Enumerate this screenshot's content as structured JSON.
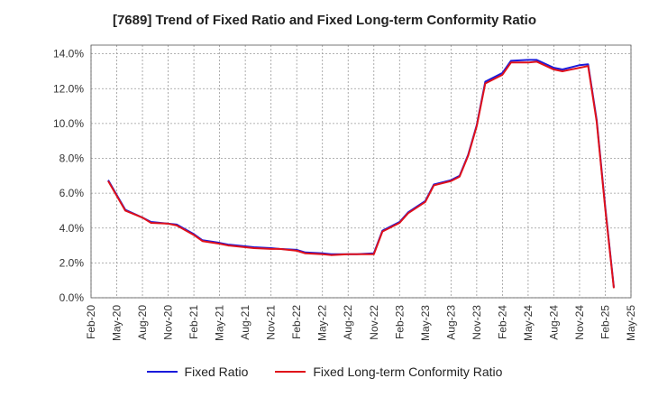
{
  "chart_data": {
    "type": "line",
    "title": "[7689]  Trend of Fixed Ratio and Fixed Long-term Conformity Ratio",
    "xlabel": "",
    "ylabel": "",
    "x_ticks": [
      "Feb-20",
      "May-20",
      "Aug-20",
      "Nov-20",
      "Feb-21",
      "May-21",
      "Aug-21",
      "Nov-21",
      "Feb-22",
      "May-22",
      "Aug-22",
      "Nov-22",
      "Feb-23",
      "May-23",
      "Aug-23",
      "Nov-23",
      "Feb-24",
      "May-24",
      "Aug-24",
      "Nov-24",
      "Feb-25",
      "May-25"
    ],
    "y_ticks": [
      "0.0%",
      "2.0%",
      "4.0%",
      "6.0%",
      "8.0%",
      "10.0%",
      "12.0%",
      "14.0%"
    ],
    "ylim": [
      0,
      14.5
    ],
    "grid": true,
    "legend_position": "bottom",
    "series": [
      {
        "name": "Fixed Ratio",
        "color": "#1a1adb",
        "x": [
          "Apr-20",
          "May-20",
          "Jun-20",
          "Aug-20",
          "Sep-20",
          "Nov-20",
          "Dec-20",
          "Feb-21",
          "Mar-21",
          "May-21",
          "Jun-21",
          "Aug-21",
          "Sep-21",
          "Nov-21",
          "Dec-21",
          "Feb-22",
          "Mar-22",
          "May-22",
          "Jun-22",
          "Aug-22",
          "Sep-22",
          "Nov-22",
          "Dec-22",
          "Feb-23",
          "Mar-23",
          "May-23",
          "Jun-23",
          "Aug-23",
          "Sep-23",
          "Oct-23",
          "Nov-23",
          "Dec-23",
          "Feb-24",
          "Mar-24",
          "May-24",
          "Jun-24",
          "Aug-24",
          "Sep-24",
          "Nov-24",
          "Dec-24",
          "Jan-25",
          "Feb-25",
          "Mar-25"
        ],
        "values": [
          6.75,
          5.9,
          5.05,
          4.6,
          4.35,
          4.25,
          4.2,
          3.65,
          3.3,
          3.15,
          3.05,
          2.95,
          2.9,
          2.85,
          2.8,
          2.75,
          2.6,
          2.55,
          2.5,
          2.5,
          2.5,
          2.55,
          3.85,
          4.35,
          4.9,
          5.55,
          6.5,
          6.75,
          7.0,
          8.2,
          9.9,
          12.4,
          12.9,
          13.6,
          13.65,
          13.65,
          13.2,
          13.1,
          13.35,
          13.4,
          10.2,
          5.2,
          0.6
        ]
      },
      {
        "name": "Fixed Long-term Conformity Ratio",
        "color": "#e0111a",
        "x": [
          "Apr-20",
          "May-20",
          "Jun-20",
          "Aug-20",
          "Sep-20",
          "Nov-20",
          "Dec-20",
          "Feb-21",
          "Mar-21",
          "May-21",
          "Jun-21",
          "Aug-21",
          "Sep-21",
          "Nov-21",
          "Dec-21",
          "Feb-22",
          "Mar-22",
          "May-22",
          "Jun-22",
          "Aug-22",
          "Sep-22",
          "Nov-22",
          "Dec-22",
          "Feb-23",
          "Mar-23",
          "May-23",
          "Jun-23",
          "Aug-23",
          "Sep-23",
          "Oct-23",
          "Nov-23",
          "Dec-23",
          "Feb-24",
          "Mar-24",
          "May-24",
          "Jun-24",
          "Aug-24",
          "Sep-24",
          "Nov-24",
          "Dec-24",
          "Jan-25",
          "Feb-25",
          "Mar-25"
        ],
        "values": [
          6.7,
          5.85,
          5.0,
          4.6,
          4.3,
          4.25,
          4.15,
          3.6,
          3.25,
          3.1,
          3.0,
          2.9,
          2.85,
          2.8,
          2.8,
          2.7,
          2.55,
          2.5,
          2.45,
          2.5,
          2.5,
          2.5,
          3.8,
          4.3,
          4.85,
          5.5,
          6.45,
          6.7,
          6.95,
          8.15,
          9.85,
          12.3,
          12.8,
          13.5,
          13.5,
          13.55,
          13.1,
          13.0,
          13.2,
          13.3,
          10.1,
          5.1,
          0.55
        ]
      }
    ]
  }
}
